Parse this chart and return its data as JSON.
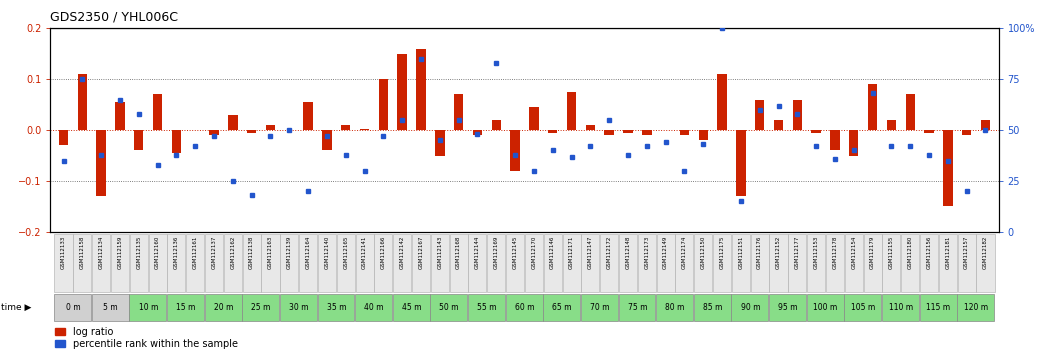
{
  "title": "GDS2350 / YHL006C",
  "bar_color": "#cc2200",
  "dot_color": "#2255cc",
  "bg_color": "#ffffff",
  "ylim_left": [
    -0.2,
    0.2
  ],
  "ylim_right": [
    0,
    100
  ],
  "yticks_left": [
    -0.2,
    -0.1,
    0.0,
    0.1,
    0.2
  ],
  "yticks_right": [
    0,
    25,
    50,
    75,
    100
  ],
  "time_labels": [
    "0 m",
    "5 m",
    "10 m",
    "15 m",
    "20 m",
    "25 m",
    "30 m",
    "35 m",
    "40 m",
    "45 m",
    "50 m",
    "55 m",
    "60 m",
    "65 m",
    "70 m",
    "75 m",
    "80 m",
    "85 m",
    "90 m",
    "95 m",
    "100 m",
    "105 m",
    "110 m",
    "115 m",
    "120 m"
  ],
  "gsm_labels": [
    "GSM112133",
    "GSM112158",
    "GSM112134",
    "GSM112159",
    "GSM112135",
    "GSM112160",
    "GSM112136",
    "GSM112161",
    "GSM112137",
    "GSM112162",
    "GSM112138",
    "GSM112163",
    "GSM112139",
    "GSM112164",
    "GSM112140",
    "GSM112165",
    "GSM112141",
    "GSM112166",
    "GSM112142",
    "GSM112167",
    "GSM112143",
    "GSM112168",
    "GSM112144",
    "GSM112169",
    "GSM112145",
    "GSM112170",
    "GSM112146",
    "GSM112171",
    "GSM112147",
    "GSM112172",
    "GSM112148",
    "GSM112173",
    "GSM112149",
    "GSM112174",
    "GSM112150",
    "GSM112175",
    "GSM112151",
    "GSM112176",
    "GSM112152",
    "GSM112177",
    "GSM112153",
    "GSM112178",
    "GSM112154",
    "GSM112179",
    "GSM112155",
    "GSM112180",
    "GSM112156",
    "GSM112181",
    "GSM112157",
    "GSM112182"
  ],
  "log_ratio": [
    -0.03,
    0.11,
    -0.13,
    0.055,
    -0.04,
    0.07,
    -0.045,
    0.0,
    -0.01,
    0.03,
    -0.005,
    0.01,
    0.0,
    0.055,
    -0.04,
    0.01,
    0.002,
    0.1,
    0.15,
    0.16,
    -0.05,
    0.07,
    -0.01,
    0.02,
    -0.08,
    0.045,
    -0.005,
    0.075,
    0.01,
    -0.01,
    -0.005,
    -0.01,
    0.0,
    -0.01,
    -0.02,
    0.11,
    -0.13,
    0.06,
    0.02,
    0.06,
    -0.005,
    -0.04,
    -0.05,
    0.09,
    0.02,
    0.07,
    -0.005,
    -0.15,
    -0.01,
    0.02
  ],
  "percentile": [
    35,
    75,
    38,
    65,
    58,
    33,
    38,
    42,
    47,
    25,
    18,
    47,
    50,
    20,
    47,
    38,
    30,
    47,
    55,
    85,
    45,
    55,
    48,
    83,
    38,
    30,
    40,
    37,
    42,
    55,
    38,
    42,
    44,
    30,
    43,
    100,
    15,
    60,
    62,
    58,
    42,
    36,
    40,
    68,
    42,
    42,
    38,
    35,
    20,
    50
  ],
  "gsm_bg": "#e8e8e8",
  "gsm_border": "#aaaaaa",
  "time_bg_gray": "#d0d0d0",
  "time_bg_green": "#88dd88",
  "time_border": "#888888",
  "legend_bar_label": "log ratio",
  "legend_dot_label": "percentile rank within the sample"
}
